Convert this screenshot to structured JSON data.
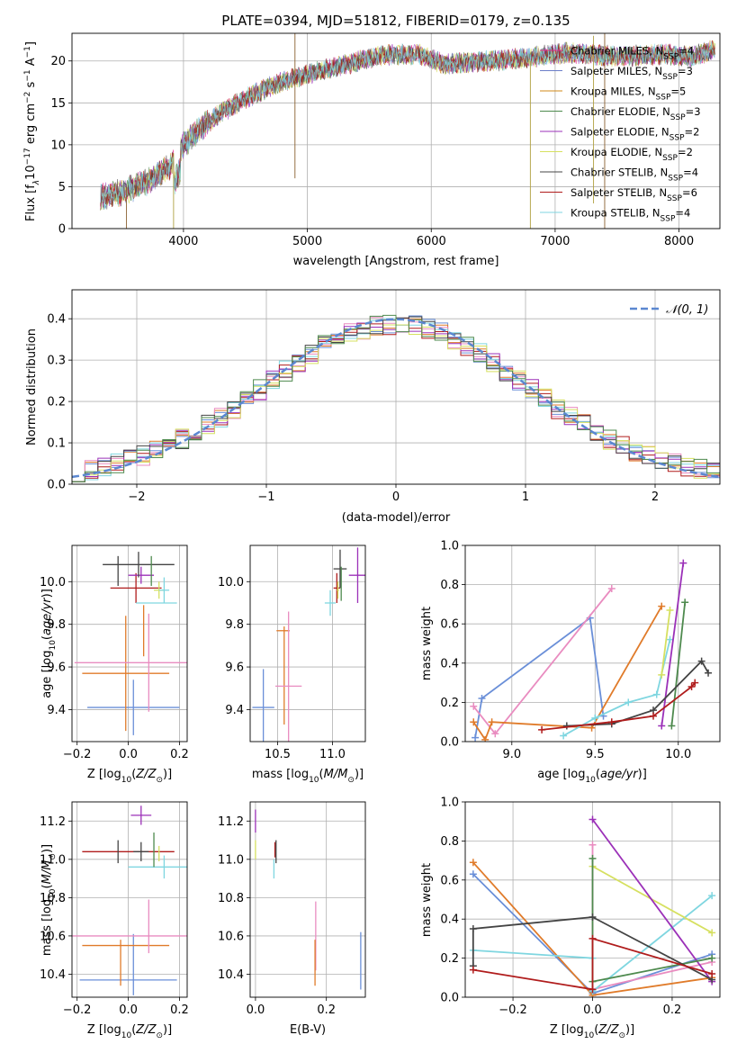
{
  "chart_data": [
    {
      "id": "spectrum",
      "type": "line",
      "title": "PLATE=0394, MJD=51812, FIBERID=0179, z=0.135",
      "xlabel": "wavelength [Angstrom, rest frame]",
      "ylabel_parts": [
        "Flux [f",
        "λ",
        "10",
        "−17",
        " erg cm",
        "−2",
        " s",
        "−1",
        " A",
        "−1",
        "]"
      ],
      "xlim": [
        3100,
        8330
      ],
      "ylim": [
        0,
        23.3
      ],
      "xticks": [
        4000,
        5000,
        6000,
        7000,
        8000
      ],
      "yticks": [
        0,
        5,
        10,
        15,
        20
      ],
      "continuum": {
        "x": [
          3330,
          3500,
          3700,
          3900,
          4000,
          4100,
          4300,
          4500,
          4700,
          4900,
          5100,
          5300,
          5500,
          5700,
          5900,
          6100,
          6300,
          6500,
          6700,
          6900,
          7100,
          7300,
          7500,
          7700,
          7900,
          8100,
          8280
        ],
        "y": [
          3.8,
          4.3,
          5.5,
          7.5,
          10.0,
          11.5,
          13.8,
          15.5,
          17.0,
          18.0,
          18.8,
          19.5,
          20.3,
          20.8,
          20.8,
          19.6,
          19.8,
          20.0,
          20.3,
          20.6,
          21.0,
          20.8,
          20.5,
          20.7,
          20.8,
          20.5,
          21.3
        ]
      },
      "series": [
        {
          "name": "Chabrier MILES, N",
          "sub": "SSP",
          "val": "=4",
          "color": "#e7298a"
        },
        {
          "name": "Salpeter MILES, N",
          "sub": "SSP",
          "val": "=3",
          "color": "#6b7ec8"
        },
        {
          "name": "Kroupa MILES, N",
          "sub": "SSP",
          "val": "=5",
          "color": "#d08a1a"
        },
        {
          "name": "Chabrier ELODIE, N",
          "sub": "SSP",
          "val": "=3",
          "color": "#4e8a4e"
        },
        {
          "name": "Salpeter ELODIE, N",
          "sub": "SSP",
          "val": "=2",
          "color": "#9b30b8"
        },
        {
          "name": "Kroupa ELODIE, N",
          "sub": "SSP",
          "val": "=2",
          "color": "#d6e060"
        },
        {
          "name": "Chabrier STELIB, N",
          "sub": "SSP",
          "val": "=4",
          "color": "#444444"
        },
        {
          "name": "Salpeter STELIB, N",
          "sub": "SSP",
          "val": "=6",
          "color": "#b01c1c"
        },
        {
          "name": "Kroupa STELIB, N",
          "sub": "SSP",
          "val": "=4",
          "color": "#7fd6e0"
        }
      ],
      "legend": "right"
    },
    {
      "id": "residuals",
      "type": "line",
      "xlabel": "(data-model)/error",
      "ylabel": "Normed distribution",
      "xlim": [
        -2.5,
        2.5
      ],
      "ylim": [
        0,
        0.47
      ],
      "xticks": [
        -2,
        -1,
        0,
        1,
        2
      ],
      "yticks": [
        0.0,
        0.1,
        0.2,
        0.3,
        0.4
      ],
      "legend_label": "𝒩(0, 1)",
      "legend": "top-right",
      "bin_width": 0.1,
      "colors": [
        "#6a8fd8",
        "#e07b2a",
        "#e98cc0",
        "#7fd6e0",
        "#b01c1c",
        "#9b30b8",
        "#d6e060",
        "#444444",
        "#4e8a4e"
      ]
    },
    {
      "id": "age-vs-Z",
      "type": "scatter",
      "xlabel": "Z [log10(Z/Z⊙)]",
      "ylabel": "age  [log10(age/yr)]",
      "xlim": [
        -0.22,
        0.23
      ],
      "ylim": [
        9.25,
        10.17
      ],
      "xticks": [
        -0.2,
        0.0,
        0.2
      ],
      "yticks": [
        9.4,
        9.6,
        9.8,
        10.0
      ],
      "points": [
        {
          "x": 0.02,
          "y": 9.41,
          "xerr": 0.18,
          "yerr": 0.13,
          "color": "#6a8fd8"
        },
        {
          "x": -0.01,
          "y": 9.57,
          "xerr": 0.17,
          "yerr": 0.27,
          "color": "#e07b2a"
        },
        {
          "x": 0.08,
          "y": 9.62,
          "xerr": 0.29,
          "yerr": 0.23,
          "color": "#e98cc0"
        },
        {
          "x": 0.06,
          "y": 9.77,
          "xerr": 0.0,
          "yerr": 0.12,
          "color": "#e07b2a"
        },
        {
          "x": 0.03,
          "y": 9.97,
          "xerr": 0.1,
          "yerr": 0.07,
          "color": "#b01c1c"
        },
        {
          "x": 0.05,
          "y": 10.03,
          "xerr": 0.05,
          "yerr": 0.04,
          "color": "#9b30b8"
        },
        {
          "x": 0.12,
          "y": 9.96,
          "xerr": 0.02,
          "yerr": 0.04,
          "color": "#d6e060"
        },
        {
          "x": 0.14,
          "y": 9.96,
          "xerr": 0.02,
          "yerr": 0.06,
          "color": "#7fd6e0"
        },
        {
          "x": 0.11,
          "y": 9.9,
          "xerr": 0.08,
          "yerr": 0.0,
          "color": "#7fd6e0"
        },
        {
          "x": 0.04,
          "y": 10.08,
          "xerr": 0.14,
          "yerr": 0.06,
          "color": "#444444"
        },
        {
          "x": 0.09,
          "y": 10.05,
          "xerr": 0.0,
          "yerr": 0.07,
          "color": "#4e8a4e"
        },
        {
          "x": -0.04,
          "y": 10.05,
          "xerr": 0.0,
          "yerr": 0.07,
          "color": "#444444"
        }
      ]
    },
    {
      "id": "age-vs-mass",
      "type": "scatter",
      "xlabel": "mass [log10(M/M⊙)]",
      "ylabel": "",
      "xlim": [
        10.25,
        11.3
      ],
      "ylim": [
        9.25,
        10.17
      ],
      "xticks": [
        10.5,
        11.0
      ],
      "yticks": [
        9.4,
        9.6,
        9.8,
        10.0
      ],
      "points": [
        {
          "x": 10.37,
          "y": 9.41,
          "xerr": 0.1,
          "yerr": 0.18,
          "color": "#6a8fd8"
        },
        {
          "x": 10.55,
          "y": 9.77,
          "xerr": 0.06,
          "yerr": 0.0,
          "color": "#e07b2a"
        },
        {
          "x": 10.56,
          "y": 9.56,
          "xerr": 0.0,
          "yerr": 0.23,
          "color": "#e07b2a"
        },
        {
          "x": 10.6,
          "y": 9.51,
          "xerr": 0.12,
          "yerr": 0.35,
          "color": "#e98cc0"
        },
        {
          "x": 11.04,
          "y": 9.97,
          "xerr": 0.03,
          "yerr": 0.07,
          "color": "#b01c1c"
        },
        {
          "x": 11.23,
          "y": 10.03,
          "xerr": 0.08,
          "yerr": 0.13,
          "color": "#9b30b8"
        },
        {
          "x": 11.05,
          "y": 9.96,
          "xerr": 0.01,
          "yerr": 0.04,
          "color": "#d6e060"
        },
        {
          "x": 10.98,
          "y": 9.9,
          "xerr": 0.05,
          "yerr": 0.06,
          "color": "#7fd6e0"
        },
        {
          "x": 11.07,
          "y": 10.06,
          "xerr": 0.06,
          "yerr": 0.09,
          "color": "#444444"
        },
        {
          "x": 11.08,
          "y": 9.99,
          "xerr": 0.0,
          "yerr": 0.08,
          "color": "#4e8a4e"
        }
      ]
    },
    {
      "id": "mw-vs-age",
      "type": "line",
      "xlabel": "age  [log10(age/yr)]",
      "ylabel": "mass weight",
      "xlim": [
        8.72,
        10.25
      ],
      "ylim": [
        0,
        1.0
      ],
      "xticks": [
        9.0,
        9.5,
        10.0
      ],
      "yticks": [
        0.0,
        0.2,
        0.4,
        0.6,
        0.8,
        1.0
      ],
      "series": [
        {
          "color": "#6a8fd8",
          "x": [
            8.78,
            8.82,
            9.47,
            9.55
          ],
          "y": [
            0.02,
            0.22,
            0.63,
            0.13
          ]
        },
        {
          "color": "#e98cc0",
          "x": [
            8.77,
            8.9,
            9.6
          ],
          "y": [
            0.18,
            0.04,
            0.78
          ]
        },
        {
          "color": "#e07b2a",
          "x": [
            8.77,
            8.84,
            8.88,
            9.48,
            9.9
          ],
          "y": [
            0.1,
            0.01,
            0.1,
            0.07,
            0.69
          ]
        },
        {
          "color": "#7fd6e0",
          "x": [
            9.31,
            9.5,
            9.7,
            9.87,
            9.95
          ],
          "y": [
            0.03,
            0.12,
            0.2,
            0.24,
            0.52
          ]
        },
        {
          "color": "#d6e060",
          "x": [
            9.9,
            9.95
          ],
          "y": [
            0.34,
            0.67
          ]
        },
        {
          "color": "#9b30b8",
          "x": [
            9.9,
            10.03
          ],
          "y": [
            0.08,
            0.91
          ]
        },
        {
          "color": "#4e8a4e",
          "x": [
            9.96,
            10.04
          ],
          "y": [
            0.08,
            0.71
          ]
        },
        {
          "color": "#444444",
          "x": [
            9.33,
            9.6,
            9.85,
            10.14,
            10.18
          ],
          "y": [
            0.08,
            0.09,
            0.16,
            0.41,
            0.35
          ]
        },
        {
          "color": "#b01c1c",
          "x": [
            9.18,
            9.6,
            9.85,
            10.08,
            10.1
          ],
          "y": [
            0.06,
            0.1,
            0.13,
            0.28,
            0.3
          ]
        }
      ]
    },
    {
      "id": "mass-vs-Z",
      "type": "scatter",
      "xlabel": "Z [log10(Z/Z⊙)]",
      "ylabel": "mass [log10(M/M⊙)]",
      "xlim": [
        -0.22,
        0.23
      ],
      "ylim": [
        10.28,
        11.3
      ],
      "xticks": [
        -0.2,
        0.0,
        0.2
      ],
      "yticks": [
        10.4,
        10.6,
        10.8,
        11.0,
        11.2
      ],
      "points": [
        {
          "x": 0.0,
          "y": 10.37,
          "xerr": 0.19,
          "yerr": 0.0,
          "color": "#6a8fd8"
        },
        {
          "x": 0.02,
          "y": 10.45,
          "xerr": 0.0,
          "yerr": 0.16,
          "color": "#6a8fd8"
        },
        {
          "x": -0.01,
          "y": 10.55,
          "xerr": 0.17,
          "yerr": 0.0,
          "color": "#e07b2a"
        },
        {
          "x": -0.03,
          "y": 10.46,
          "xerr": 0.0,
          "yerr": 0.12,
          "color": "#e07b2a"
        },
        {
          "x": 0.06,
          "y": 10.6,
          "xerr": 0.29,
          "yerr": 0.0,
          "color": "#e98cc0"
        },
        {
          "x": 0.08,
          "y": 10.65,
          "xerr": 0.0,
          "yerr": 0.14,
          "color": "#e98cc0"
        },
        {
          "x": 0.05,
          "y": 11.23,
          "xerr": 0.04,
          "yerr": 0.05,
          "color": "#9b30b8"
        },
        {
          "x": 0.0,
          "y": 11.04,
          "xerr": 0.18,
          "yerr": 0.0,
          "color": "#b01c1c"
        },
        {
          "x": -0.04,
          "y": 11.04,
          "xerr": 0.0,
          "yerr": 0.06,
          "color": "#444444"
        },
        {
          "x": 0.14,
          "y": 10.96,
          "xerr": 0.14,
          "yerr": 0.06,
          "color": "#7fd6e0"
        },
        {
          "x": 0.1,
          "y": 11.05,
          "xerr": 0.0,
          "yerr": 0.09,
          "color": "#4e8a4e"
        },
        {
          "x": 0.05,
          "y": 11.04,
          "xerr": 0.03,
          "yerr": 0.05,
          "color": "#444444"
        },
        {
          "x": 0.12,
          "y": 11.03,
          "xerr": 0.0,
          "yerr": 0.04,
          "color": "#d6e060"
        }
      ]
    },
    {
      "id": "mass-vs-EBV",
      "type": "scatter",
      "xlabel": "E(B-V)",
      "ylabel": "",
      "xlim": [
        -0.015,
        0.31
      ],
      "ylim": [
        10.28,
        11.3
      ],
      "xticks": [
        0.0,
        0.2
      ],
      "yticks": [
        10.4,
        10.6,
        10.8,
        11.0,
        11.2
      ],
      "points": [
        {
          "x": 0.0,
          "y": 11.05,
          "xerr": 0.0,
          "yerr": 0.05,
          "color": "#d6e060"
        },
        {
          "x": 0.0,
          "y": 11.2,
          "xerr": 0.0,
          "yerr": 0.06,
          "color": "#9b30b8"
        },
        {
          "x": 0.055,
          "y": 11.05,
          "xerr": 0.0,
          "yerr": 0.04,
          "color": "#b01c1c"
        },
        {
          "x": 0.058,
          "y": 11.04,
          "xerr": 0.0,
          "yerr": 0.06,
          "color": "#444444"
        },
        {
          "x": 0.052,
          "y": 10.95,
          "xerr": 0.0,
          "yerr": 0.05,
          "color": "#7fd6e0"
        },
        {
          "x": 0.17,
          "y": 10.6,
          "xerr": 0.0,
          "yerr": 0.18,
          "color": "#e98cc0"
        },
        {
          "x": 0.168,
          "y": 10.46,
          "xerr": 0.0,
          "yerr": 0.12,
          "color": "#e07b2a"
        },
        {
          "x": 0.297,
          "y": 10.47,
          "xerr": 0.0,
          "yerr": 0.15,
          "color": "#6a8fd8"
        }
      ]
    },
    {
      "id": "mw-vs-Z",
      "type": "line",
      "xlabel": "Z [log10(Z/Z⊙)]",
      "ylabel": "mass weight",
      "xlim": [
        -0.32,
        0.32
      ],
      "ylim": [
        0,
        1.0
      ],
      "xticks": [
        -0.2,
        0.0,
        0.2
      ],
      "yticks": [
        0.0,
        0.2,
        0.4,
        0.6,
        0.8,
        1.0
      ],
      "series": [
        {
          "color": "#6a8fd8",
          "x": [
            -0.3,
            0.0,
            0.3
          ],
          "y": [
            0.63,
            0.02,
            0.22
          ]
        },
        {
          "color": "#e07b2a",
          "x": [
            -0.3,
            0.0,
            0.3
          ],
          "y": [
            0.69,
            0.01,
            0.1
          ]
        },
        {
          "color": "#e98cc0",
          "x": [
            0.0,
            0.0,
            0.3
          ],
          "y": [
            0.78,
            0.04,
            0.18
          ]
        },
        {
          "color": "#7fd6e0",
          "x": [
            -0.3,
            0.0,
            0.0,
            0.3
          ],
          "y": [
            0.24,
            0.2,
            0.03,
            0.52
          ]
        },
        {
          "color": "#d6e060",
          "x": [
            0.0,
            0.3
          ],
          "y": [
            0.67,
            0.33
          ]
        },
        {
          "color": "#9b30b8",
          "x": [
            0.0,
            0.3
          ],
          "y": [
            0.91,
            0.08
          ]
        },
        {
          "color": "#4e8a4e",
          "x": [
            0.0,
            0.0,
            0.3
          ],
          "y": [
            0.71,
            0.08,
            0.2
          ]
        },
        {
          "color": "#444444",
          "x": [
            -0.3,
            -0.3,
            0.0,
            0.3
          ],
          "y": [
            0.16,
            0.35,
            0.41,
            0.09
          ]
        },
        {
          "color": "#b01c1c",
          "x": [
            -0.3,
            0.0,
            0.0,
            0.3
          ],
          "y": [
            0.14,
            0.04,
            0.3,
            0.12
          ]
        }
      ]
    }
  ]
}
